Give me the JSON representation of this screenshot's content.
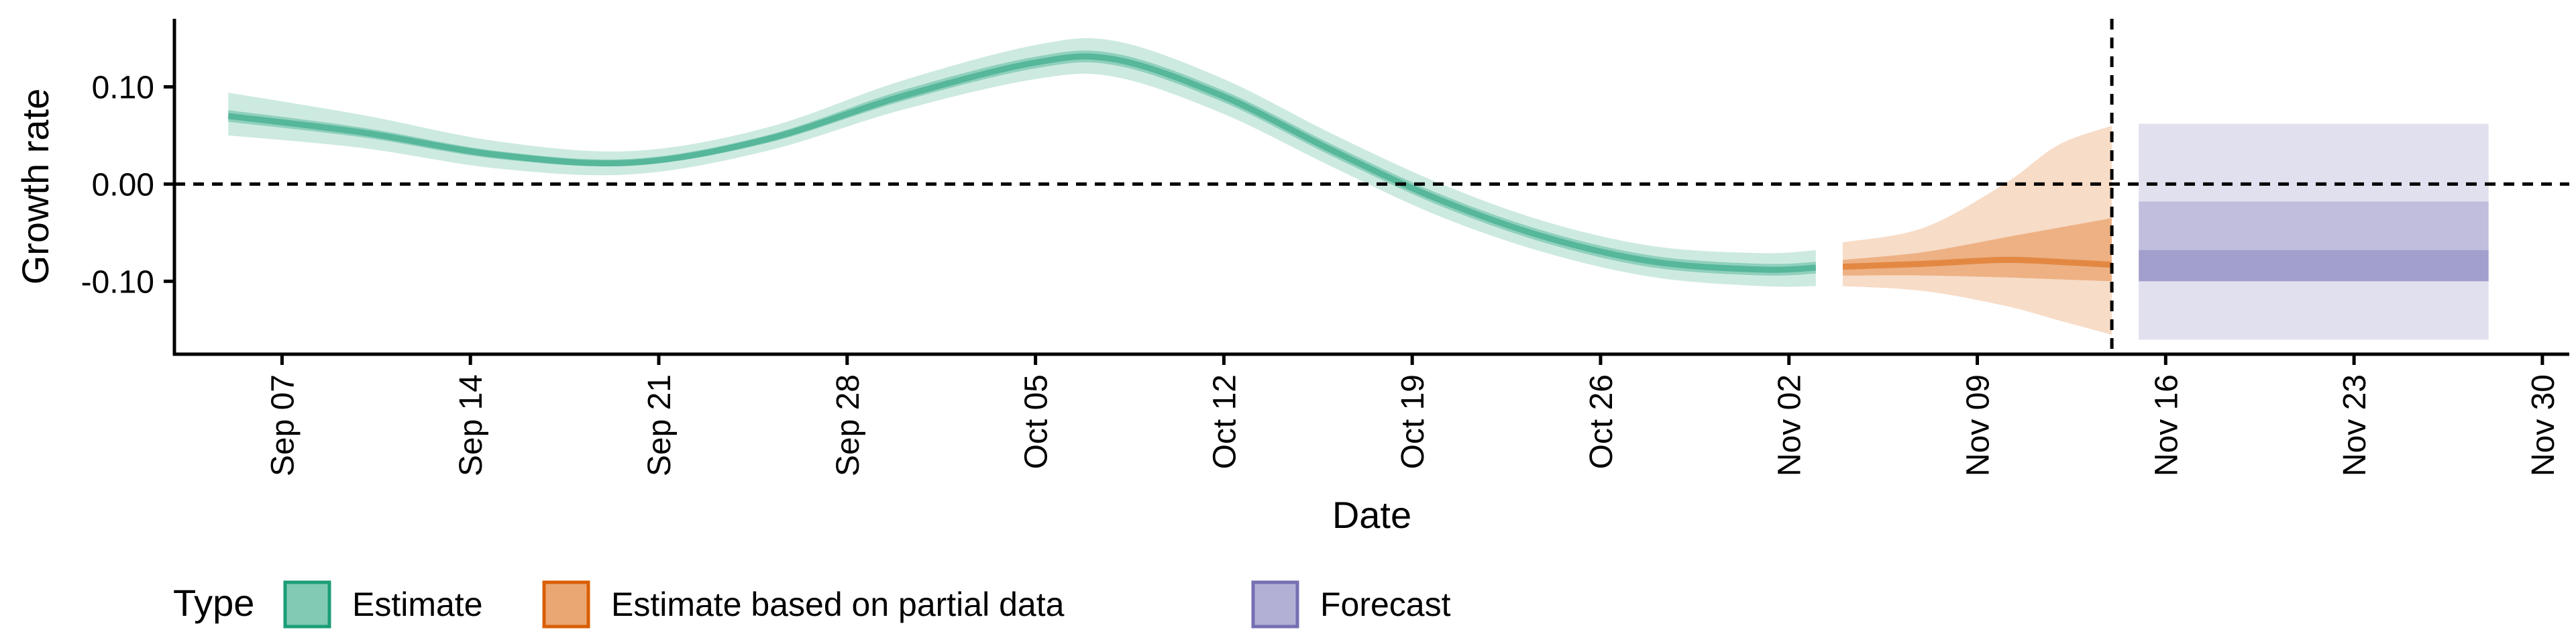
{
  "chart_data": {
    "type": "area",
    "xlabel": "Date",
    "ylabel": "Growth rate",
    "x_range": [
      "2020-09-03",
      "2020-12-01"
    ],
    "ylim": [
      -0.175,
      0.17
    ],
    "y_ticks": [
      {
        "value": 0.1,
        "label": "0.10"
      },
      {
        "value": 0.0,
        "label": "0.00"
      },
      {
        "value": -0.1,
        "label": "-0.10"
      }
    ],
    "x_ticks": [
      {
        "date": "2020-09-07",
        "label": "Sep 07"
      },
      {
        "date": "2020-09-14",
        "label": "Sep 14"
      },
      {
        "date": "2020-09-21",
        "label": "Sep 21"
      },
      {
        "date": "2020-09-28",
        "label": "Sep 28"
      },
      {
        "date": "2020-10-05",
        "label": "Oct 05"
      },
      {
        "date": "2020-10-12",
        "label": "Oct 12"
      },
      {
        "date": "2020-10-19",
        "label": "Oct 19"
      },
      {
        "date": "2020-10-26",
        "label": "Oct 26"
      },
      {
        "date": "2020-11-02",
        "label": "Nov 02"
      },
      {
        "date": "2020-11-09",
        "label": "Nov 09"
      },
      {
        "date": "2020-11-16",
        "label": "Nov 16"
      },
      {
        "date": "2020-11-23",
        "label": "Nov 23"
      },
      {
        "date": "2020-11-30",
        "label": "Nov 30"
      }
    ],
    "reference_lines": {
      "horizontal": 0.0,
      "vertical": "2020-11-14"
    },
    "grid": false,
    "legend": {
      "position": "bottom-left",
      "title": "Type",
      "entries": [
        {
          "label": "Estimate",
          "color": "#1b9e77"
        },
        {
          "label": "Estimate based on partial data",
          "color": "#d95f02"
        },
        {
          "label": "Forecast",
          "color": "#7570b3"
        }
      ]
    },
    "series": [
      {
        "name": "Estimate",
        "color": "#1b9e77",
        "points": [
          {
            "date": "2020-09-05",
            "median": 0.07,
            "lower50": 0.064,
            "upper50": 0.076,
            "lower90": 0.05,
            "upper90": 0.094
          },
          {
            "date": "2020-09-10",
            "median": 0.053,
            "lower50": 0.048,
            "upper50": 0.058,
            "lower90": 0.037,
            "upper90": 0.071
          },
          {
            "date": "2020-09-15",
            "median": 0.03,
            "lower50": 0.026,
            "upper50": 0.034,
            "lower90": 0.016,
            "upper90": 0.044
          },
          {
            "date": "2020-09-20",
            "median": 0.022,
            "lower50": 0.019,
            "upper50": 0.026,
            "lower90": 0.01,
            "upper90": 0.034
          },
          {
            "date": "2020-09-25",
            "median": 0.046,
            "lower50": 0.042,
            "upper50": 0.05,
            "lower90": 0.034,
            "upper90": 0.058
          },
          {
            "date": "2020-09-30",
            "median": 0.09,
            "lower50": 0.085,
            "upper50": 0.096,
            "lower90": 0.076,
            "upper90": 0.106
          },
          {
            "date": "2020-10-05",
            "median": 0.125,
            "lower50": 0.119,
            "upper50": 0.131,
            "lower90": 0.108,
            "upper90": 0.143
          },
          {
            "date": "2020-10-08",
            "median": 0.128,
            "lower50": 0.122,
            "upper50": 0.134,
            "lower90": 0.11,
            "upper90": 0.147
          },
          {
            "date": "2020-10-12",
            "median": 0.09,
            "lower50": 0.084,
            "upper50": 0.096,
            "lower90": 0.072,
            "upper90": 0.108
          },
          {
            "date": "2020-10-16",
            "median": 0.035,
            "lower50": 0.029,
            "upper50": 0.041,
            "lower90": 0.018,
            "upper90": 0.052
          },
          {
            "date": "2020-10-20",
            "median": -0.016,
            "lower50": -0.022,
            "upper50": -0.01,
            "lower90": -0.033,
            "upper90": 0.001
          },
          {
            "date": "2020-10-24",
            "median": -0.055,
            "lower50": -0.061,
            "upper50": -0.049,
            "lower90": -0.071,
            "upper90": -0.039
          },
          {
            "date": "2020-10-28",
            "median": -0.08,
            "lower50": -0.086,
            "upper50": -0.074,
            "lower90": -0.096,
            "upper90": -0.064
          },
          {
            "date": "2020-11-01",
            "median": -0.088,
            "lower50": -0.094,
            "upper50": -0.082,
            "lower90": -0.105,
            "upper90": -0.071
          },
          {
            "date": "2020-11-03",
            "median": -0.086,
            "lower50": -0.092,
            "upper50": -0.08,
            "lower90": -0.105,
            "upper90": -0.068
          }
        ]
      },
      {
        "name": "Estimate based on partial data",
        "color": "#d95f02",
        "points": [
          {
            "date": "2020-11-04",
            "median": -0.085,
            "lower50": -0.094,
            "upper50": -0.078,
            "lower90": -0.105,
            "upper90": -0.06
          },
          {
            "date": "2020-11-07",
            "median": -0.082,
            "lower50": -0.094,
            "upper50": -0.07,
            "lower90": -0.11,
            "upper90": -0.045
          },
          {
            "date": "2020-11-10",
            "median": -0.078,
            "lower50": -0.096,
            "upper50": -0.055,
            "lower90": -0.125,
            "upper90": 0.0
          },
          {
            "date": "2020-11-12",
            "median": -0.08,
            "lower50": -0.098,
            "upper50": -0.045,
            "lower90": -0.14,
            "upper90": 0.04
          },
          {
            "date": "2020-11-14",
            "median": -0.083,
            "lower50": -0.1,
            "upper50": -0.035,
            "lower90": -0.155,
            "upper90": 0.06
          }
        ]
      },
      {
        "name": "Forecast",
        "color": "#7570b3",
        "points": [
          {
            "date": "2020-11-15",
            "median": -0.083,
            "lower30": -0.1,
            "upper30": -0.068,
            "lower60": -0.1,
            "upper60": -0.018,
            "lower90": -0.16,
            "upper90": 0.062
          },
          {
            "date": "2020-11-28",
            "median": -0.083,
            "lower30": -0.1,
            "upper30": -0.068,
            "lower60": -0.1,
            "upper60": -0.018,
            "lower90": -0.16,
            "upper90": 0.062
          }
        ]
      }
    ]
  }
}
